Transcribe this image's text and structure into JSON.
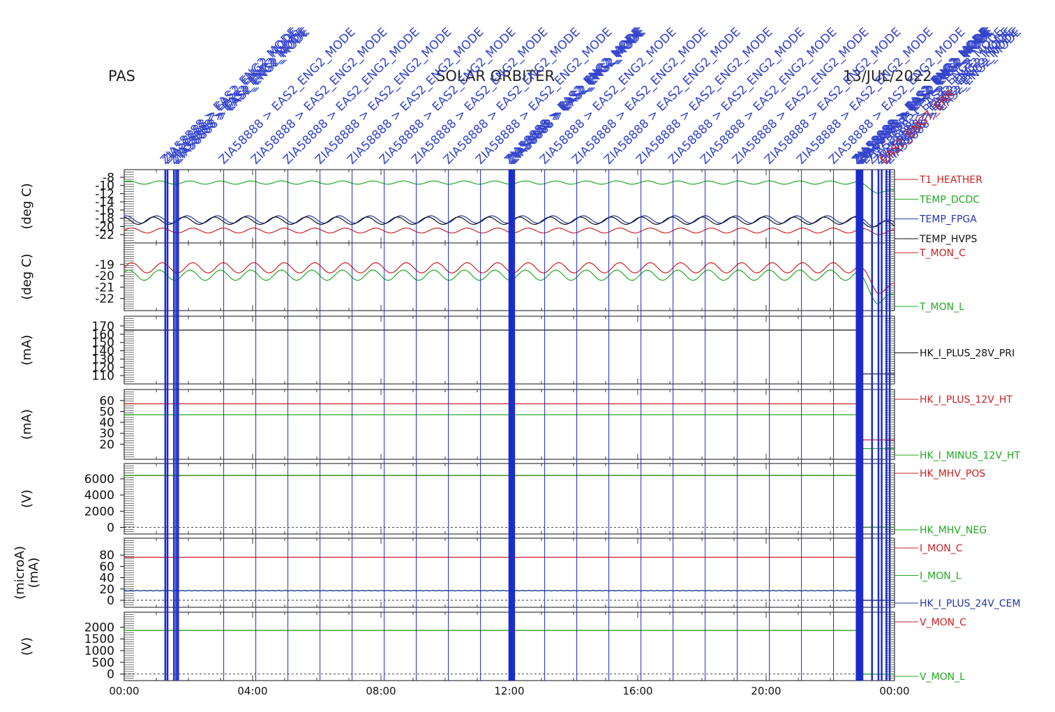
{
  "header": {
    "left": "PAS",
    "center": "SOLAR ORBITER",
    "right": "13/JUL/2022"
  },
  "chart_data": {
    "type": "line",
    "x_unit": "hours",
    "xlim": [
      0,
      24
    ],
    "xtick_labels": [
      "00:00",
      "04:00",
      "08:00",
      "12:00",
      "16:00",
      "20:00",
      "00:00"
    ],
    "xtick_values": [
      0,
      4,
      8,
      12,
      16,
      20,
      24
    ],
    "event_annotations": {
      "label": "ZIA58888 > EAS2_ENG2_MODE",
      "single_times": [
        3.1,
        4.1,
        5.1,
        6.1,
        7.1,
        8.1,
        9.1,
        10.1,
        11.1,
        13.1,
        14.1,
        15.1,
        16.1,
        17.1,
        18.1,
        19.1,
        20.1,
        21.1,
        22.1
      ],
      "cluster_times": [
        1.28,
        1.35,
        1.55,
        1.62,
        1.68,
        12.0,
        12.05,
        12.1,
        12.15,
        22.82,
        22.86,
        22.9,
        22.95,
        23.0,
        23.3,
        23.5,
        23.6,
        23.75,
        23.85
      ],
      "extra_labels": [
        "EAS2_BURST",
        "EAS2_ENG7_ERR"
      ]
    },
    "panels": [
      {
        "ylabel": "(deg C)",
        "ylim": [
          -23,
          -7.5
        ],
        "ytick_labels": [
          "-8",
          "-10",
          "-12",
          "-14",
          "-16",
          "-18",
          "-20",
          "-22"
        ],
        "ytick_values": [
          -8,
          -10,
          -12,
          -14,
          -16,
          -18,
          -20,
          -22
        ],
        "series": [
          {
            "name": "T1_HEATHER",
            "color": "#cc2222",
            "base": -21.0,
            "amp": 0.6,
            "period_hours": 0.95,
            "end_drop": 0.4
          },
          {
            "name": "TEMP_DCDC",
            "color": "#22aa22",
            "base": -9.3,
            "amp": 0.4,
            "period_hours": 0.95,
            "end_drop": 2.2
          },
          {
            "name": "TEMP_FPGA",
            "color": "#2233aa",
            "base": -18.3,
            "amp": 0.9,
            "period_hours": 0.95,
            "end_drop": 1.0
          },
          {
            "name": "TEMP_HVPS",
            "color": "#111111",
            "base": -18.6,
            "amp": 0.9,
            "period_hours": 0.95,
            "end_drop": 1.0
          }
        ]
      },
      {
        "ylabel": "(deg C)",
        "ylim": [
          -22.7,
          -17.6
        ],
        "ytick_labels": [
          "-19",
          "-20",
          "-21",
          "-22"
        ],
        "ytick_values": [
          -19,
          -20,
          -21,
          -22
        ],
        "series": [
          {
            "name": "T_MON_C",
            "color": "#cc2222",
            "base": -19.3,
            "amp": 0.45,
            "period_hours": 0.95,
            "end_drop": 1.8
          },
          {
            "name": "T_MON_L",
            "color": "#22aa22",
            "base": -19.95,
            "amp": 0.45,
            "period_hours": 0.95,
            "end_drop": 2.1
          }
        ]
      },
      {
        "ylabel": "(mA)",
        "ylim": [
          105,
          175
        ],
        "ytick_labels": [
          "170",
          "160",
          "150",
          "140",
          "130",
          "120",
          "110"
        ],
        "ytick_values": [
          170,
          160,
          150,
          140,
          130,
          120,
          110
        ],
        "series": [
          {
            "name": "HK_I_PLUS_28V_PRI",
            "color": "#111111",
            "base": 165,
            "amp": 0,
            "period_hours": 0,
            "end_drop": 0,
            "after_value": 112
          }
        ]
      },
      {
        "ylabel": "(mA)",
        "ylim": [
          10,
          65
        ],
        "ytick_labels": [
          "60",
          "50",
          "40",
          "30",
          "20"
        ],
        "ytick_values": [
          60,
          50,
          40,
          30,
          20
        ],
        "series": [
          {
            "name": "HK_I_PLUS_12V_HT",
            "color": "#cc2222",
            "base": 57,
            "amp": 0,
            "period_hours": 0,
            "end_drop": 0,
            "after_value": 24
          },
          {
            "name": "HK_I_MINUS_12V_HT",
            "color": "#22aa22",
            "base": 47,
            "amp": 0,
            "period_hours": 0,
            "end_drop": 0,
            "after_value": 16
          }
        ]
      },
      {
        "ylabel": "(V)",
        "ylim": [
          -300,
          7200
        ],
        "ytick_labels": [
          "6000",
          "4000",
          "2000",
          "0"
        ],
        "ytick_values": [
          6000,
          4000,
          2000,
          0
        ],
        "series": [
          {
            "name": "HK_MHV_POS",
            "color": "#cc2222",
            "base": 6400,
            "amp": 0,
            "period_hours": 0,
            "end_drop": 0,
            "after_value": 0
          },
          {
            "name": "HK_MHV_NEG",
            "color": "#22aa22",
            "base": 6420,
            "amp": 0,
            "period_hours": 0,
            "end_drop": 0,
            "after_value": 40
          }
        ]
      },
      {
        "ylabel": "(microA)\n(mA)",
        "ylim": [
          -5,
          100
        ],
        "ytick_labels": [
          "80",
          "60",
          "40",
          "20",
          "0"
        ],
        "ytick_values": [
          80,
          60,
          40,
          20,
          0
        ],
        "series": [
          {
            "name": "I_MON_C",
            "color": "#cc2222",
            "base": 76,
            "amp": 0,
            "period_hours": 0,
            "end_drop": 0,
            "after_value": 0
          },
          {
            "name": "I_MON_L",
            "color": "#22aa22",
            "base": 17,
            "amp": 0,
            "period_hours": 0,
            "end_drop": 0,
            "after_value": 0
          },
          {
            "name": "HK_I_PLUS_24V_CEM",
            "color": "#2233aa",
            "base": 17,
            "amp": 0.6,
            "period_hours": 0.2,
            "end_drop": 0,
            "after_value": 0
          }
        ]
      },
      {
        "ylabel": "(V)",
        "ylim": [
          -100,
          2400
        ],
        "ytick_labels": [
          "2000",
          "1500",
          "1000",
          "500",
          "0"
        ],
        "ytick_values": [
          2000,
          1500,
          1000,
          500,
          0
        ],
        "series": [
          {
            "name": "V_MON_C",
            "color": "#cc2222",
            "base": 1860,
            "amp": 0,
            "period_hours": 0,
            "end_drop": 0,
            "after_value": 0
          },
          {
            "name": "V_MON_L",
            "color": "#22aa22",
            "base": 1860,
            "amp": 0,
            "period_hours": 0,
            "end_drop": 0,
            "after_value": 0
          }
        ]
      }
    ]
  }
}
